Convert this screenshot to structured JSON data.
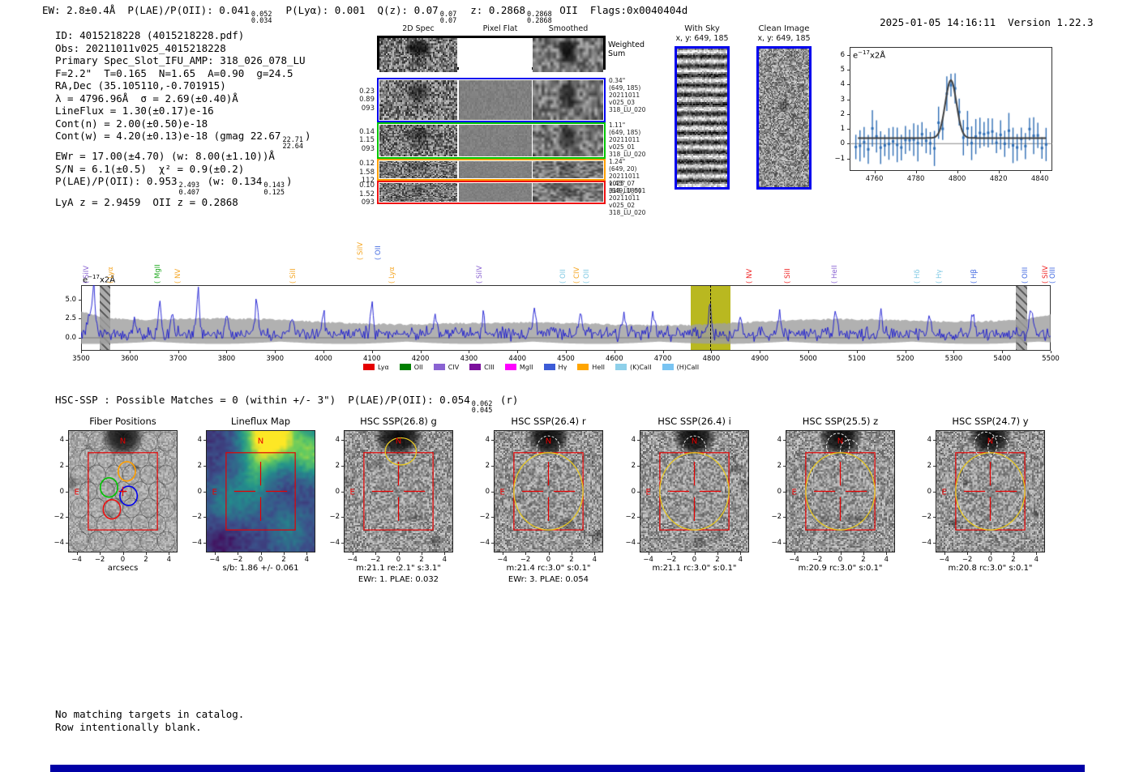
{
  "header": {
    "segments": [
      {
        "text": "EW: 2.8±0.4Å"
      },
      {
        "text": "P(LAE)/P(OII): 0.041",
        "frac": [
          "0.052",
          "0.034"
        ]
      },
      {
        "text": "P(Lyα): 0.001"
      },
      {
        "text": "Q(z): 0.07",
        "frac": [
          "0.07",
          "0.07"
        ]
      },
      {
        "text": "z: 0.2868",
        "frac": [
          "0.2868",
          "0.2868"
        ],
        "after": "OII"
      },
      {
        "text": "Flags:0x0040404d"
      }
    ],
    "timestamp": "2025-01-05 14:16:11",
    "version": "Version 1.22.3"
  },
  "info_lines": [
    [
      {
        "t": "ID: 4015218228 (4015218228.pdf)"
      }
    ],
    [
      {
        "t": "Obs: 20211011v025_4015218228"
      }
    ],
    [
      {
        "t": "Primary Spec_Slot_IFU_AMP: 318_026_078_LU"
      }
    ],
    [
      {
        "t": "F=2.2\"  T=0.165  N=1.65  A=0.90  g=24.5"
      }
    ],
    [
      {
        "t": "RA,Dec (35.105110,-0.701915)"
      }
    ],
    [
      {
        "t": "λ = 4796.96Å  σ = 2.69(±0.40)Å"
      }
    ],
    [
      {
        "t": "LineFlux = 1.30(±0.17)e-16"
      }
    ],
    [
      {
        "t": "Cont(n) = 2.00(±0.50)e-18"
      }
    ],
    [
      {
        "t": "Cont(w) = 4.20(±0.13)e-18 (gmag 22.67"
      },
      {
        "frac": [
          "22.71",
          "22.64"
        ]
      },
      {
        "t": ")"
      }
    ],
    [
      {
        "t": "EWr = 17.00(±4.70) (w: 8.00(±1.10))Å"
      }
    ],
    [
      {
        "t": "S/N = 6.1(±0.5)  χ² = 0.9(±0.2)"
      }
    ],
    [
      {
        "t": "P(LAE)/P(OII): 0.953"
      },
      {
        "frac": [
          "2.493",
          "0.407"
        ]
      },
      {
        "t": " (w: 0.134"
      },
      {
        "frac": [
          "0.143",
          "0.125"
        ]
      },
      {
        "t": ")"
      }
    ],
    [
      {
        "t": "LyA z = 2.9459  OII z = 0.2868"
      }
    ]
  ],
  "spec2d": {
    "col_headers": [
      "2D Spec",
      "Pixel Flat",
      "Smoothed"
    ],
    "weighted_label": [
      "Weighted",
      "Sum"
    ],
    "rows": [
      {
        "color": "#0000ee",
        "left": [
          "0.23",
          "0.89",
          "093"
        ],
        "right": [
          "0.34\"",
          "(649, 185)",
          "20211011",
          "v025_03",
          "318_LU_020"
        ]
      },
      {
        "color": "#00c400",
        "left": [
          "0.14",
          "1.15",
          "093"
        ],
        "right": [
          "1.11\"",
          "(649, 185)",
          "20211011",
          "v025_01",
          "318_LU_020"
        ]
      },
      {
        "color": "#ff9f00",
        "left": [
          "0.12",
          "1.58",
          "112"
        ],
        "right": [
          "1.24\"",
          "(649, 20)",
          "20211011",
          "v025_07",
          "318_LU_001"
        ]
      },
      {
        "color": "#ee1111",
        "left": [
          "0.10",
          "1.52",
          "093"
        ],
        "right": [
          "1.43\"",
          "(649, 185)",
          "20211011",
          "v025_02",
          "318_LU_020"
        ]
      }
    ]
  },
  "sky_panels": {
    "with_sky": {
      "title": "With Sky",
      "subtitle": "x, y: 649, 185"
    },
    "clean": {
      "title": "Clean Image",
      "subtitle": "x, y: 649, 185"
    }
  },
  "chart_data": [
    {
      "type": "line",
      "title": "emission-line-zoom",
      "units": {
        "base": "e",
        "exp": "−17",
        "rest": "x2Å"
      },
      "x_ticks": [
        "4760",
        "4780",
        "4800",
        "4820",
        "4840"
      ],
      "x_tick_values": [
        4760,
        4780,
        4800,
        4820,
        4840
      ],
      "y_ticks": [
        "6",
        "5",
        "4",
        "3",
        "2",
        "1",
        "0",
        "−1"
      ],
      "y_tick_values": [
        6,
        5,
        4,
        3,
        2,
        1,
        0,
        -1
      ],
      "gaussian_fit": {
        "center": 4796.96,
        "sigma": 2.69,
        "peak": 4.3,
        "baseline": 0.38
      },
      "series_note": "blue errorbar flux points, baseline ~0.3, peak ~5 at 4797Å"
    },
    {
      "type": "line",
      "title": "full-spectrum",
      "units": {
        "base": "e",
        "exp": "−17",
        "rest": "x2Å"
      },
      "x_range": [
        3500,
        5500
      ],
      "x_ticks": [
        "3500",
        "3600",
        "3700",
        "3800",
        "3900",
        "4000",
        "4100",
        "4200",
        "4300",
        "4400",
        "4500",
        "4600",
        "4700",
        "4800",
        "4900",
        "5000",
        "5100",
        "5200",
        "5300",
        "5400",
        "5500"
      ],
      "y_ticks": [
        "5.0",
        "2.5",
        "0.0"
      ],
      "y_tick_values": [
        5.0,
        2.5,
        0.0
      ],
      "highlight_band": [
        4757,
        4840
      ],
      "dashed_line_at": 4796.96,
      "hatched_bands": [
        [
          3538,
          3560
        ],
        [
          5428,
          5452
        ]
      ],
      "line_labels": [
        {
          "name": "SiIV",
          "wave": 3508,
          "color": "#8a63d2",
          "raised": false
        },
        {
          "name": "Lyα",
          "wave": 3559,
          "color": "#f5a623",
          "raised": false
        },
        {
          "name": "MgII",
          "wave": 3655,
          "color": "#1faa1f",
          "raised": false
        },
        {
          "name": "NV",
          "wave": 3697,
          "color": "#f5a623",
          "raised": false
        },
        {
          "name": "SiII",
          "wave": 3935,
          "color": "#f5a623",
          "raised": false
        },
        {
          "name": "SiIV",
          "wave": 4074,
          "color": "#f5a623",
          "raised": true
        },
        {
          "name": "OII",
          "wave": 4110,
          "color": "#4169e1",
          "raised": true
        },
        {
          "name": "Lyα",
          "wave": 4139,
          "color": "#f5a623",
          "raised": false
        },
        {
          "name": "SiIV",
          "wave": 4319,
          "color": "#8a63d2",
          "raised": false
        },
        {
          "name": "OII",
          "wave": 4492,
          "color": "#7ec8e3",
          "raised": false
        },
        {
          "name": "CIV",
          "wave": 4520,
          "color": "#f5a623",
          "raised": false
        },
        {
          "name": "OII",
          "wave": 4540,
          "color": "#7ec8e3",
          "raised": false
        },
        {
          "name": "NV",
          "wave": 4876,
          "color": "#ef2020",
          "raised": false
        },
        {
          "name": "SiII",
          "wave": 4955,
          "color": "#ef2020",
          "raised": false
        },
        {
          "name": "HeII",
          "wave": 5052,
          "color": "#8a63d2",
          "raised": false
        },
        {
          "name": "Hδ",
          "wave": 5222,
          "color": "#7ec8e3",
          "raised": false
        },
        {
          "name": "Hγ",
          "wave": 5267,
          "color": "#7ec8e3",
          "raised": false
        },
        {
          "name": "Hβ",
          "wave": 5339,
          "color": "#4169e1",
          "raised": false
        },
        {
          "name": "OIII",
          "wave": 5445,
          "color": "#4169e1",
          "raised": false
        },
        {
          "name": "SiIV",
          "wave": 5486,
          "color": "#ef2020",
          "raised": false
        },
        {
          "name": "OIII",
          "wave": 5501,
          "color": "#4169e1",
          "raised": false
        }
      ],
      "legend": [
        {
          "label": "Lyα",
          "color": "#e50000"
        },
        {
          "label": "OII",
          "color": "#007f00"
        },
        {
          "label": "CIV",
          "color": "#8a63d2"
        },
        {
          "label": "CIII",
          "color": "#7b0f9c"
        },
        {
          "label": "MgII",
          "color": "#ff00ff"
        },
        {
          "label": "Hγ",
          "color": "#3c5bd6"
        },
        {
          "label": "HeII",
          "color": "#ffa500"
        },
        {
          "label": "(K)CaII",
          "color": "#8ed0ea"
        },
        {
          "label": "(H)CaII",
          "color": "#79c4f2"
        }
      ]
    }
  ],
  "hsc_line": [
    {
      "t": "HSC-SSP : Possible Matches = 0 (within +/- 3\")  P(LAE)/P(OII): 0.054"
    },
    {
      "frac": [
        "0.062",
        "0.045"
      ]
    },
    {
      "t": " (r)"
    }
  ],
  "cutout_panels": {
    "y_tick_labels": [
      "4",
      "2",
      "0",
      "−2",
      "−4"
    ],
    "x_tick_labels": [
      "−4",
      "−2",
      "0",
      "2",
      "4"
    ],
    "compass": {
      "north": "N",
      "east": "E"
    },
    "items": [
      {
        "id": "fiber",
        "title": "Fiber Positions",
        "caption": "arcsecs"
      },
      {
        "id": "lineflux",
        "title": "Lineflux Map",
        "caption": "s/b: 1.86 +/- 0.061"
      },
      {
        "id": "g",
        "title": "HSC SSP(26.8) g",
        "caption": "m:21.1  re:2.1\"  s:3.1\"",
        "caption2": "EWr: 1. PLAE: 0.032"
      },
      {
        "id": "r",
        "title": "HSC SSP(26.4) r",
        "caption": "m:21.4 rc:3.0\"  s:0.1\"",
        "caption2": "EWr: 3. PLAE: 0.054"
      },
      {
        "id": "i",
        "title": "HSC SSP(26.4) i",
        "caption": "m:21.1 rc:3.0\"  s:0.1\""
      },
      {
        "id": "z",
        "title": "HSC SSP(25.5) z",
        "caption": "m:20.9 rc:3.0\"  s:0.1\""
      },
      {
        "id": "y",
        "title": "HSC SSP(24.7) y",
        "caption": "m:20.8 rc:3.0\"  s:0.1\""
      }
    ]
  },
  "footer_lines": [
    "No matching targets in catalog.",
    "Row intentionally blank."
  ],
  "colors": {
    "accent_border": "#0000ee",
    "bottom_bar": "#0000a6",
    "selection_band": "#b9b820",
    "spectrum_blue": "#1515d0",
    "fit_gray": "#3d3d3d",
    "point_blue": "#2e6db4",
    "overlay_red": "#e60000",
    "aperture_yellow": "#e8c821"
  }
}
